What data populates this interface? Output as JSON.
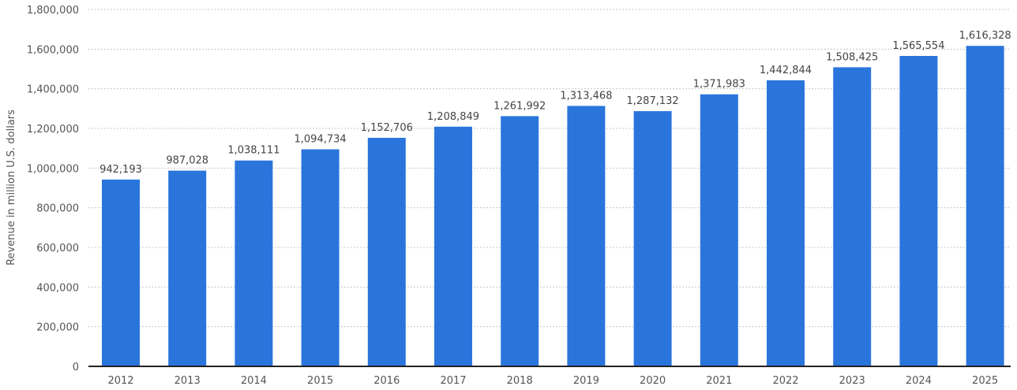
{
  "chart_data": {
    "type": "bar",
    "title": "",
    "xlabel": "",
    "ylabel": "Revenue in million U.S. dollars",
    "categories": [
      "2012",
      "2013",
      "2014",
      "2015",
      "2016",
      "2017",
      "2018",
      "2019",
      "2020",
      "2021",
      "2022",
      "2023",
      "2024",
      "2025"
    ],
    "values": [
      942193,
      987028,
      1038111,
      1094734,
      1152706,
      1208849,
      1261992,
      1313468,
      1287132,
      1371983,
      1442844,
      1508425,
      1565554,
      1616328
    ],
    "value_labels": [
      "942,193",
      "987,028",
      "1,038,111",
      "1,094,734",
      "1,152,706",
      "1,208,849",
      "1,261,992",
      "1,313,468",
      "1,287,132",
      "1,371,983",
      "1,442,844",
      "1,508,425",
      "1,565,554",
      "1,616,328"
    ],
    "ylim": [
      0,
      1800000
    ],
    "yticks": [
      0,
      200000,
      400000,
      600000,
      800000,
      1000000,
      1200000,
      1400000,
      1600000,
      1800000
    ],
    "ytick_labels": [
      "0",
      "200,000",
      "400,000",
      "600,000",
      "800,000",
      "1,000,000",
      "1,200,000",
      "1,400,000",
      "1,600,000",
      "1,800,000"
    ],
    "grid": true,
    "bar_color": "#2a75dc"
  }
}
